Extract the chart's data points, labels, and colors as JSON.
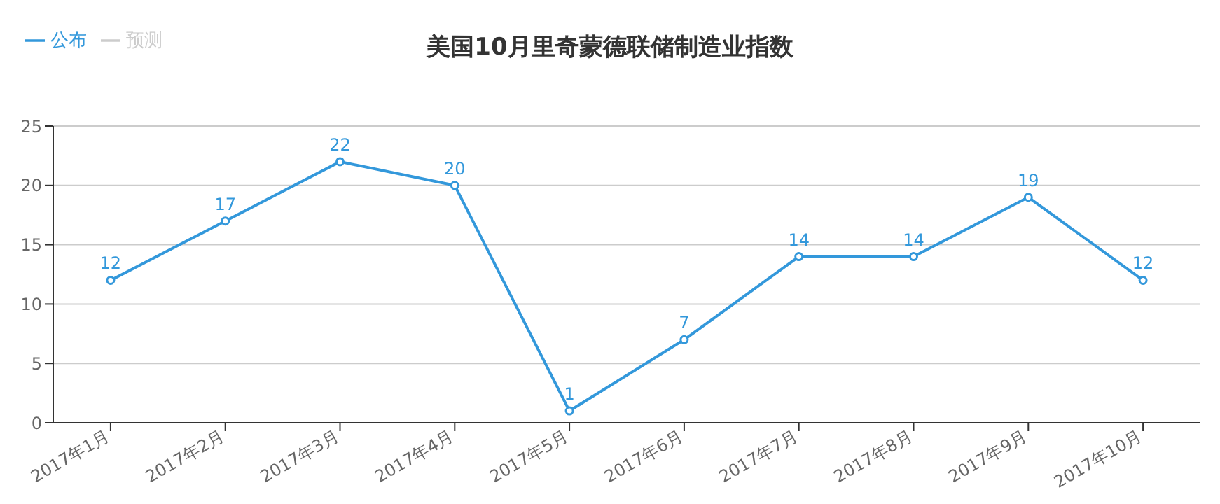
{
  "chart_data": {
    "type": "line",
    "title": "美国10月里奇蒙德联储制造业指数",
    "categories": [
      "2017年1月",
      "2017年2月",
      "2017年3月",
      "2017年4月",
      "2017年5月",
      "2017年6月",
      "2017年7月",
      "2017年8月",
      "2017年9月",
      "2017年10月"
    ],
    "series": [
      {
        "name": "公布",
        "color": "#3398db",
        "values": [
          12,
          17,
          22,
          20,
          1,
          7,
          14,
          14,
          19,
          12
        ]
      },
      {
        "name": "预测",
        "color": "#cccccc",
        "values": [
          null,
          null,
          null,
          null,
          null,
          null,
          null,
          null,
          null,
          null
        ]
      }
    ],
    "ylim": [
      0,
      25
    ],
    "yticks": [
      0,
      5,
      10,
      15,
      20,
      25
    ],
    "grid": "y",
    "legend": "top left",
    "data_labels": true,
    "marker": "circle",
    "line_style": "solid"
  }
}
